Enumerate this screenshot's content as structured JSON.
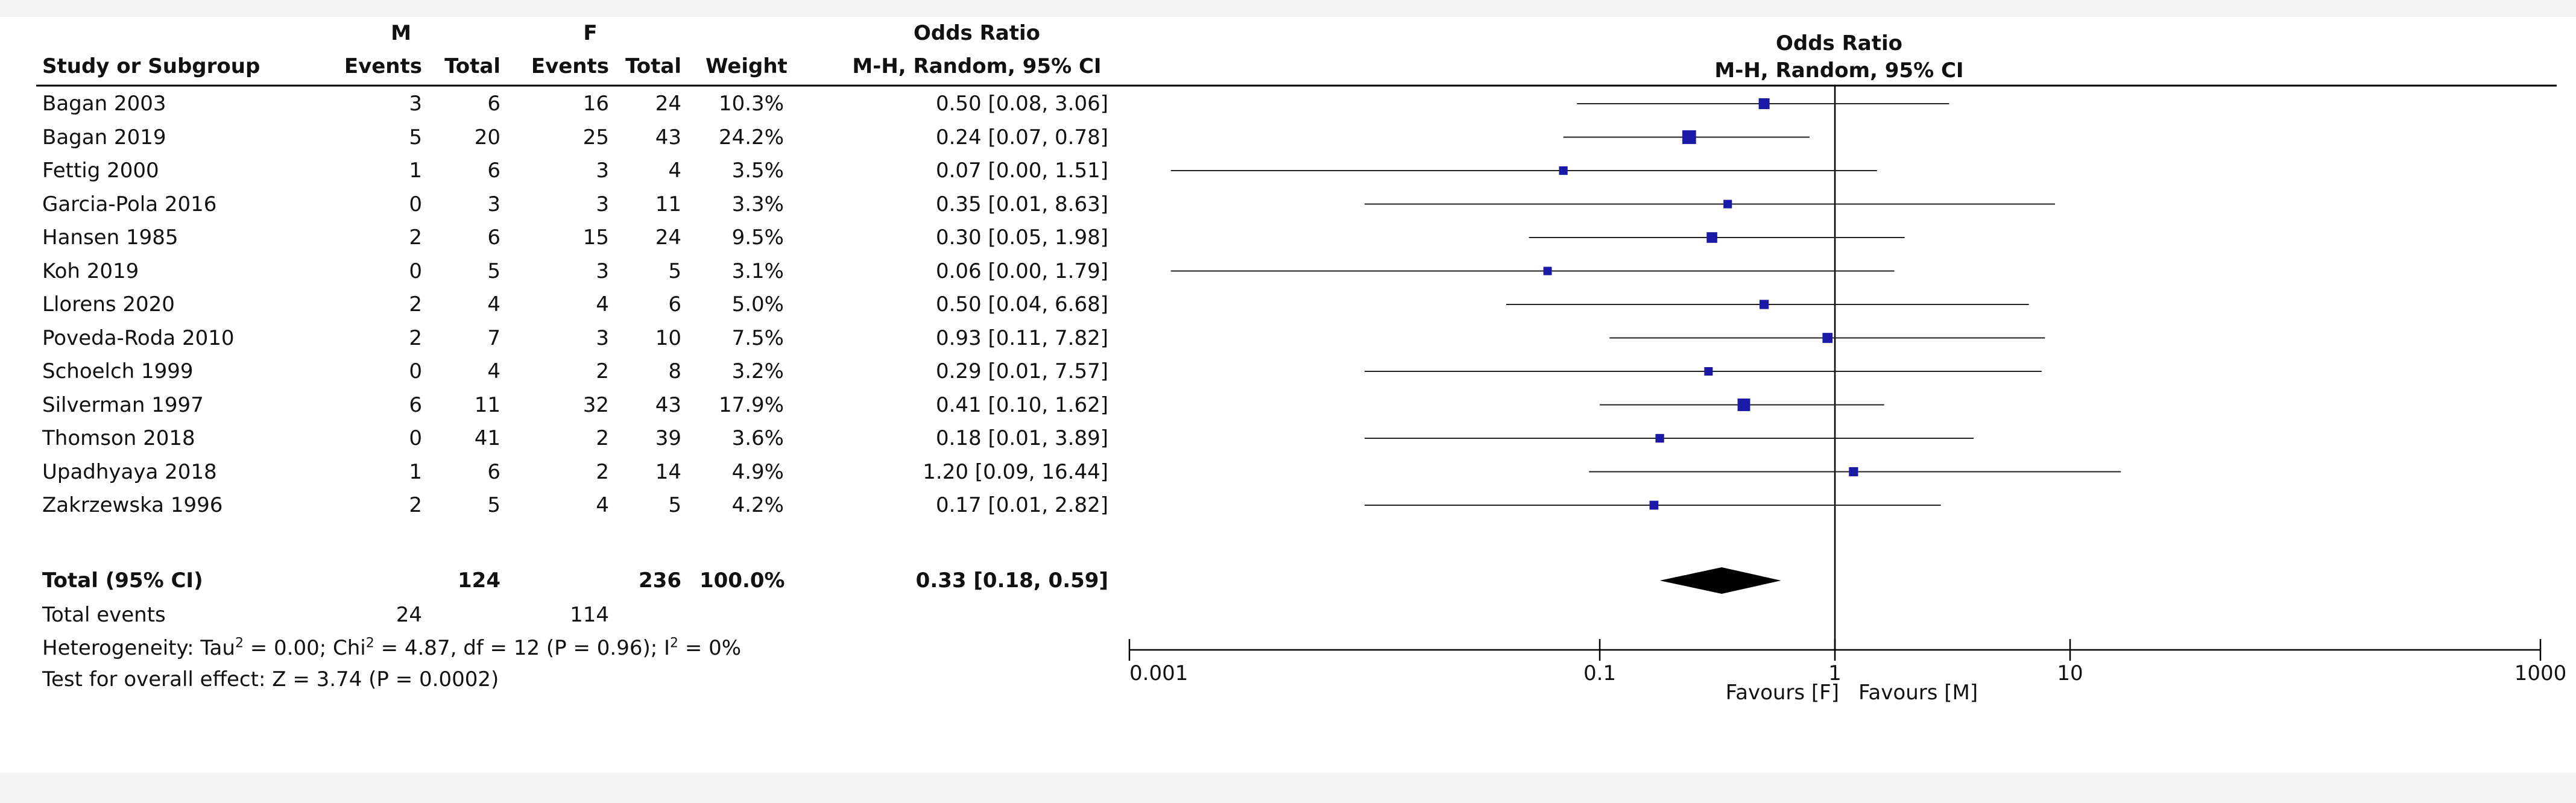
{
  "table": {
    "group1_label": "M",
    "group2_label": "F",
    "col_study": "Study or Subgroup",
    "col_events": "Events",
    "col_total": "Total",
    "col_weight": "Weight",
    "or_title": "Odds Ratio",
    "or_method": "M-H, Random, 95% CI",
    "rows": [
      {
        "study": "Bagan 2003",
        "e1": "3",
        "t1": "6",
        "e2": "16",
        "t2": "24",
        "weight": "10.3%",
        "ci": "0.50 [0.08, 3.06]"
      },
      {
        "study": "Bagan 2019",
        "e1": "5",
        "t1": "20",
        "e2": "25",
        "t2": "43",
        "weight": "24.2%",
        "ci": "0.24 [0.07, 0.78]"
      },
      {
        "study": "Fettig 2000",
        "e1": "1",
        "t1": "6",
        "e2": "3",
        "t2": "4",
        "weight": "3.5%",
        "ci": "0.07 [0.00, 1.51]"
      },
      {
        "study": "Garcia-Pola 2016",
        "e1": "0",
        "t1": "3",
        "e2": "3",
        "t2": "11",
        "weight": "3.3%",
        "ci": "0.35 [0.01, 8.63]"
      },
      {
        "study": "Hansen 1985",
        "e1": "2",
        "t1": "6",
        "e2": "15",
        "t2": "24",
        "weight": "9.5%",
        "ci": "0.30 [0.05, 1.98]"
      },
      {
        "study": "Koh 2019",
        "e1": "0",
        "t1": "5",
        "e2": "3",
        "t2": "5",
        "weight": "3.1%",
        "ci": "0.06 [0.00, 1.79]"
      },
      {
        "study": "Llorens 2020",
        "e1": "2",
        "t1": "4",
        "e2": "4",
        "t2": "6",
        "weight": "5.0%",
        "ci": "0.50 [0.04, 6.68]"
      },
      {
        "study": "Poveda-Roda 2010",
        "e1": "2",
        "t1": "7",
        "e2": "3",
        "t2": "10",
        "weight": "7.5%",
        "ci": "0.93 [0.11, 7.82]"
      },
      {
        "study": "Schoelch 1999",
        "e1": "0",
        "t1": "4",
        "e2": "2",
        "t2": "8",
        "weight": "3.2%",
        "ci": "0.29 [0.01, 7.57]"
      },
      {
        "study": "Silverman 1997",
        "e1": "6",
        "t1": "11",
        "e2": "32",
        "t2": "43",
        "weight": "17.9%",
        "ci": "0.41 [0.10, 1.62]"
      },
      {
        "study": "Thomson 2018",
        "e1": "0",
        "t1": "41",
        "e2": "2",
        "t2": "39",
        "weight": "3.6%",
        "ci": "0.18 [0.01, 3.89]"
      },
      {
        "study": "Upadhyaya 2018",
        "e1": "1",
        "t1": "6",
        "e2": "2",
        "t2": "14",
        "weight": "4.9%",
        "ci": "1.20 [0.09, 16.44]"
      },
      {
        "study": "Zakrzewska 1996",
        "e1": "2",
        "t1": "5",
        "e2": "4",
        "t2": "5",
        "weight": "4.2%",
        "ci": "0.17 [0.01, 2.82]"
      }
    ],
    "total": {
      "label": "Total (95% CI)",
      "t1": "124",
      "t2": "236",
      "weight": "100.0%",
      "ci": "0.33 [0.18, 0.59]"
    },
    "events_label": "Total events",
    "events_m": "24",
    "events_f": "114",
    "heterogeneity_a": "Heterogeneity: Tau",
    "heterogeneity_b": " = 0.00; Chi",
    "heterogeneity_c": " = 4.87, df = 12 (P = 0.96); I",
    "heterogeneity_d": " = 0%",
    "superscript": "2",
    "overall_effect": "Test for overall effect: Z = 3.74 (P = 0.0002)"
  },
  "plot": {
    "title": "Odds Ratio",
    "method": "M-H, Random, 95% CI",
    "favours_left": "Favours [F]",
    "favours_right": "Favours [M]",
    "square_color": "#1a1aa6",
    "diamond_color": "#000000"
  },
  "chart_data": {
    "type": "forest",
    "scale": "log",
    "xlim": [
      0.001,
      1000
    ],
    "reference_line": 1,
    "ticks": [
      {
        "value": 0.001,
        "label": "0.001"
      },
      {
        "value": 0.1,
        "label": "0.1"
      },
      {
        "value": 1,
        "label": "1"
      },
      {
        "value": 10,
        "label": "10"
      },
      {
        "value": 1000,
        "label": "1000"
      }
    ],
    "studies": [
      {
        "study": "Bagan 2003",
        "or": 0.5,
        "lower": 0.08,
        "upper": 3.06,
        "weight": 10.3
      },
      {
        "study": "Bagan 2019",
        "or": 0.24,
        "lower": 0.07,
        "upper": 0.78,
        "weight": 24.2
      },
      {
        "study": "Fettig 2000",
        "or": 0.07,
        "lower": 0.0,
        "upper": 1.51,
        "weight": 3.5
      },
      {
        "study": "Garcia-Pola 2016",
        "or": 0.35,
        "lower": 0.01,
        "upper": 8.63,
        "weight": 3.3
      },
      {
        "study": "Hansen 1985",
        "or": 0.3,
        "lower": 0.05,
        "upper": 1.98,
        "weight": 9.5
      },
      {
        "study": "Koh 2019",
        "or": 0.06,
        "lower": 0.0,
        "upper": 1.79,
        "weight": 3.1
      },
      {
        "study": "Llorens 2020",
        "or": 0.5,
        "lower": 0.04,
        "upper": 6.68,
        "weight": 5.0
      },
      {
        "study": "Poveda-Roda 2010",
        "or": 0.93,
        "lower": 0.11,
        "upper": 7.82,
        "weight": 7.5
      },
      {
        "study": "Schoelch 1999",
        "or": 0.29,
        "lower": 0.01,
        "upper": 7.57,
        "weight": 3.2
      },
      {
        "study": "Silverman 1997",
        "or": 0.41,
        "lower": 0.1,
        "upper": 1.62,
        "weight": 17.9
      },
      {
        "study": "Thomson 2018",
        "or": 0.18,
        "lower": 0.01,
        "upper": 3.89,
        "weight": 3.6
      },
      {
        "study": "Upadhyaya 2018",
        "or": 1.2,
        "lower": 0.09,
        "upper": 16.44,
        "weight": 4.9
      },
      {
        "study": "Zakrzewska 1996",
        "or": 0.17,
        "lower": 0.01,
        "upper": 2.82,
        "weight": 4.2
      }
    ],
    "pooled": {
      "or": 0.33,
      "lower": 0.18,
      "upper": 0.59,
      "weight": 100.0
    }
  }
}
